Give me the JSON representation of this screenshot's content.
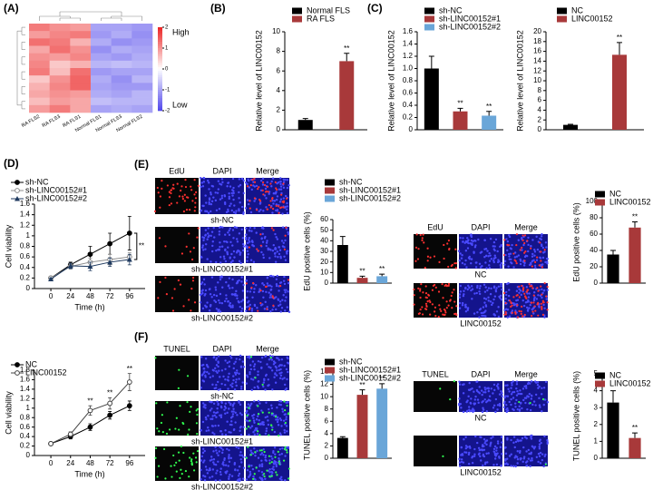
{
  "chart_data": [
    {
      "type": "heatmap",
      "panel": "(A)",
      "columns": [
        "RA FLS2",
        "RA FLS3",
        "RA FLS1",
        "Normal FLS1",
        "Normal FLS3",
        "Normal FLS2"
      ],
      "z": [
        [
          1.2,
          1.0,
          0.9,
          -1.0,
          -1.0,
          -1.1
        ],
        [
          0.9,
          1.1,
          1.2,
          -1.1,
          -0.9,
          -1.2
        ],
        [
          1.3,
          1.2,
          0.7,
          -0.9,
          -1.2,
          -1.1
        ],
        [
          0.8,
          1.3,
          1.0,
          -1.2,
          -0.9,
          -1.0
        ],
        [
          1.0,
          0.9,
          1.1,
          -1.0,
          -1.1,
          -0.9
        ],
        [
          1.1,
          0.5,
          0.7,
          -0.8,
          -0.7,
          -0.8
        ],
        [
          1.2,
          0.6,
          1.3,
          -1.1,
          -1.0,
          -1.0
        ],
        [
          0.5,
          1.0,
          1.4,
          -0.9,
          -1.2,
          -0.8
        ],
        [
          0.7,
          1.1,
          1.4,
          -1.0,
          -1.1,
          -1.1
        ],
        [
          0.8,
          1.0,
          0.9,
          -0.9,
          -1.0,
          -0.8
        ],
        [
          0.6,
          0.9,
          0.8,
          -0.7,
          -0.8,
          -0.8
        ],
        [
          0.9,
          1.2,
          0.8,
          -1.0,
          -0.9,
          -1.0
        ]
      ],
      "clim": [
        -2,
        2
      ],
      "cticks": [
        2,
        1,
        0,
        -1,
        -2
      ],
      "high_label": "High",
      "low_label": "Low"
    },
    {
      "type": "bar",
      "panel": "(B)",
      "ylabel": "Relative level of LINC00152",
      "ylim": [
        0,
        10
      ],
      "yticks": [
        0,
        2,
        4,
        6,
        8,
        10
      ],
      "series": [
        {
          "name": "Normal FLS",
          "color": "#000000",
          "values": [
            1
          ],
          "errors": [
            0.15
          ]
        },
        {
          "name": "RA FLS",
          "color": "#a8393a",
          "values": [
            7
          ],
          "errors": [
            0.8
          ],
          "significance": [
            "**"
          ]
        }
      ]
    },
    {
      "type": "bar",
      "panel": "(C)",
      "ylabel": "Relative level of LINC00152",
      "ylim": [
        0,
        1.6
      ],
      "yticks": [
        0,
        0.2,
        0.4,
        0.6,
        0.8,
        {
          "value": 1,
          "label": "1.0"
        },
        1.2,
        1.4,
        1.6
      ],
      "series": [
        {
          "name": "sh-NC",
          "color": "#000000",
          "values": [
            1
          ],
          "errors": [
            0.2
          ]
        },
        {
          "name": "sh-LINC00152#1",
          "color": "#a8393a",
          "values": [
            0.3
          ],
          "errors": [
            0.05
          ],
          "significance": [
            "**"
          ]
        },
        {
          "name": "sh-LINC00152#2",
          "color": "#6aa6d8",
          "values": [
            0.23
          ],
          "errors": [
            0.07
          ],
          "significance": [
            "**"
          ]
        }
      ]
    },
    {
      "type": "bar",
      "ylabel": "Relative level of LINC00152",
      "ylim": [
        0,
        20
      ],
      "yticks": [
        0,
        2,
        4,
        6,
        8,
        10,
        12,
        14,
        16,
        18,
        20
      ],
      "series": [
        {
          "name": "NC",
          "color": "#000000",
          "values": [
            1
          ],
          "errors": [
            0.1
          ]
        },
        {
          "name": "LINC00152",
          "color": "#a8393a",
          "values": [
            15.3
          ],
          "errors": [
            2.5
          ],
          "significance": [
            "**"
          ]
        }
      ]
    },
    {
      "type": "line",
      "panel": "(D)",
      "xlabel": "Time (h)",
      "ylabel": "Cell viability",
      "x": [
        0,
        24,
        48,
        72,
        96
      ],
      "xlim": [
        -20,
        115
      ],
      "ylim": [
        0,
        1.6
      ],
      "yticks": [
        0,
        0.2,
        0.4,
        0.6,
        0.8,
        1,
        1.2,
        1.4,
        1.6
      ],
      "bracket_label": "**",
      "series": [
        {
          "name": "sh-NC",
          "color": "#000000",
          "marker": "filled-circle",
          "values": [
            0.2,
            0.45,
            0.65,
            0.85,
            1.05
          ],
          "errors": [
            0.02,
            0.05,
            0.15,
            0.2,
            0.32
          ]
        },
        {
          "name": "sh-LINC00152#1",
          "color": "#8c8c8c",
          "marker": "open-circle",
          "values": [
            0.2,
            0.42,
            0.5,
            0.55,
            0.6
          ],
          "errors": [
            0.02,
            0.05,
            0.08,
            0.1,
            0.08
          ]
        },
        {
          "name": "sh-LINC00152#2",
          "color": "#1f3a5f",
          "marker": "triangle",
          "values": [
            0.18,
            0.43,
            0.42,
            0.5,
            0.55
          ],
          "errors": [
            0.02,
            0.05,
            0.08,
            0.08,
            0.1
          ]
        }
      ]
    },
    {
      "type": "line",
      "xlabel": "Time (h)",
      "ylabel": "Cell viability",
      "x": [
        0,
        24,
        48,
        72,
        96
      ],
      "xlim": [
        -20,
        115
      ],
      "ylim": [
        0,
        1.8
      ],
      "yticks": [
        0,
        0.2,
        0.4,
        0.6,
        0.8,
        1,
        1.2,
        1.4,
        1.6,
        1.8
      ],
      "series": [
        {
          "name": "NC",
          "color": "#000000",
          "marker": "filled-circle",
          "values": [
            0.25,
            0.4,
            0.6,
            0.85,
            1.05
          ],
          "errors": [
            0.03,
            0.05,
            0.07,
            0.08,
            0.1
          ]
        },
        {
          "name": "LINC00152",
          "color": "#444444",
          "marker": "open-circle",
          "values": [
            0.25,
            0.45,
            0.95,
            1.1,
            1.55
          ],
          "errors": [
            0.03,
            0.05,
            0.1,
            0.12,
            0.18
          ],
          "significance": [
            null,
            null,
            "**",
            "**",
            "**"
          ]
        }
      ]
    },
    {
      "type": "image_grid",
      "panel": "(E)",
      "columns": [
        "EdU",
        "DAPI",
        "Merge"
      ],
      "rows": [
        "sh-NC",
        "sh-LINC00152#1",
        "sh-LINC00152#2"
      ]
    },
    {
      "type": "bar",
      "ylabel": "EdU positive cells (%)",
      "ylim": [
        0,
        60
      ],
      "yticks": [
        0,
        10,
        20,
        30,
        40,
        50,
        60
      ],
      "series": [
        {
          "name": "sh-NC",
          "color": "#000000",
          "values": [
            36
          ],
          "errors": [
            8
          ]
        },
        {
          "name": "sh-LINC00152#1",
          "color": "#a8393a",
          "values": [
            5
          ],
          "errors": [
            1.5
          ],
          "significance": [
            "**"
          ]
        },
        {
          "name": "sh-LINC00152#2",
          "color": "#6aa6d8",
          "values": [
            6.5
          ],
          "errors": [
            2
          ],
          "significance": [
            "**"
          ]
        }
      ]
    },
    {
      "type": "image_grid",
      "columns": [
        "EdU",
        "DAPI",
        "Merge"
      ],
      "rows": [
        "NC",
        "LINC00152"
      ]
    },
    {
      "type": "bar",
      "ylabel": "EdU positive cells (%)",
      "ylim": [
        0,
        100
      ],
      "yticks": [
        0,
        20,
        40,
        60,
        80,
        100
      ],
      "series": [
        {
          "name": "NC",
          "color": "#000000",
          "values": [
            35
          ],
          "errors": [
            5
          ]
        },
        {
          "name": "LINC00152",
          "color": "#a8393a",
          "values": [
            68
          ],
          "errors": [
            7
          ],
          "significance": [
            "**"
          ]
        }
      ]
    },
    {
      "type": "image_grid",
      "panel": "(F)",
      "columns": [
        "TUNEL",
        "DAPI",
        "Merge"
      ],
      "rows": [
        "sh-NC",
        "sh-LINC00152#1",
        "sh-LINC00152#2"
      ]
    },
    {
      "type": "bar",
      "ylabel": "TUNEL positive cells (%)",
      "ylim": [
        0,
        14
      ],
      "yticks": [
        0,
        2,
        4,
        6,
        8,
        10,
        12,
        14
      ],
      "series": [
        {
          "name": "sh-NC",
          "color": "#000000",
          "values": [
            3.3
          ],
          "errors": [
            0.2
          ]
        },
        {
          "name": "sh-LINC00152#1",
          "color": "#a8393a",
          "values": [
            10.3
          ],
          "errors": [
            0.8
          ],
          "significance": [
            "**"
          ]
        },
        {
          "name": "sh-LINC00152#2",
          "color": "#6aa6d8",
          "values": [
            11.3
          ],
          "errors": [
            0.8
          ],
          "significance": [
            "**"
          ]
        }
      ]
    },
    {
      "type": "image_grid",
      "columns": [
        "TUNEL",
        "DAPI",
        "Merge"
      ],
      "rows": [
        "NC",
        "LINC00152"
      ]
    },
    {
      "type": "bar",
      "ylabel": "TUNEL positive cells (%)",
      "ylim": [
        0,
        5
      ],
      "yticks": [
        0,
        1,
        2,
        3,
        4,
        5
      ],
      "series": [
        {
          "name": "NC",
          "color": "#000000",
          "values": [
            3.3
          ],
          "errors": [
            0.7
          ]
        },
        {
          "name": "LINC00152",
          "color": "#a8393a",
          "values": [
            1.2
          ],
          "errors": [
            0.3
          ],
          "significance": [
            "**"
          ]
        }
      ]
    }
  ]
}
